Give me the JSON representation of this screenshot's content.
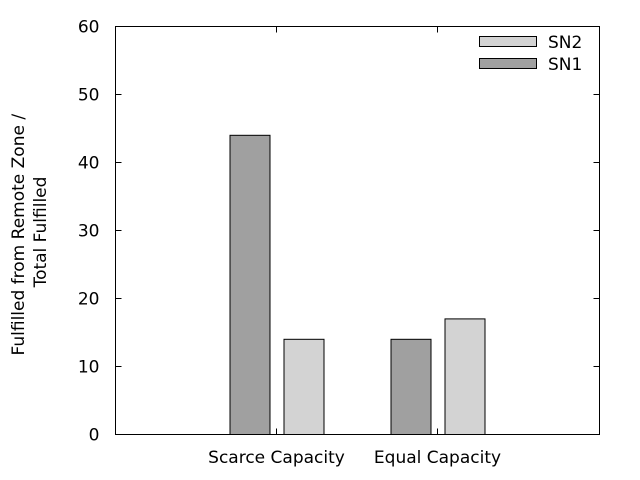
{
  "chart_data": {
    "type": "bar",
    "categories": [
      "Scarce Capacity",
      "Equal Capacity"
    ],
    "series": [
      {
        "name": "SN1",
        "values": [
          44,
          14
        ],
        "color": "#a0a0a0"
      },
      {
        "name": "SN2",
        "values": [
          14,
          17
        ],
        "color": "#d3d3d3"
      }
    ],
    "legend_order": [
      "SN2",
      "SN1"
    ],
    "ylabel_lines": [
      "Fulfilled from Remote Zone /",
      "Total Fulfilled"
    ],
    "xlabel": "",
    "ylim": [
      0,
      60
    ],
    "yticks": [
      0,
      10,
      20,
      30,
      40,
      50,
      60
    ],
    "grid": false,
    "legend_position": "top-right"
  }
}
